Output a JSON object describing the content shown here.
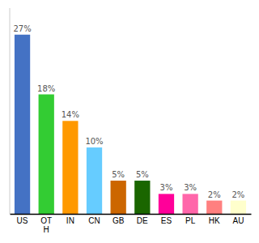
{
  "chart_data": {
    "type": "bar",
    "categories": [
      "US",
      "OT\nH",
      "IN",
      "CN",
      "GB",
      "DE",
      "ES",
      "PL",
      "HK",
      "AU"
    ],
    "values": [
      27,
      18,
      14,
      10,
      5,
      5,
      3,
      3,
      2,
      2
    ],
    "value_labels": [
      "27%",
      "18%",
      "14%",
      "10%",
      "5%",
      "5%",
      "3%",
      "3%",
      "2%",
      "2%"
    ],
    "colors": [
      "#4472c4",
      "#33cc33",
      "#ff9900",
      "#66ccff",
      "#cc6600",
      "#1a6600",
      "#ff0099",
      "#ff66aa",
      "#ff8080",
      "#ffffcc"
    ],
    "ylim": [
      0,
      31
    ],
    "data_labels": true,
    "tick_labels": "x"
  }
}
